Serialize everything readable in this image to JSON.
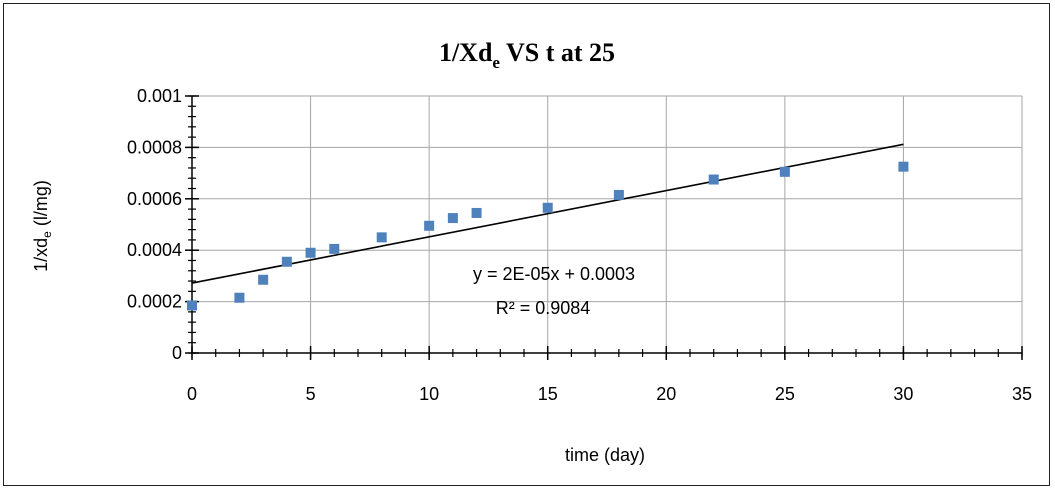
{
  "chart_data": {
    "type": "scatter",
    "title_main": "1/Xd",
    "title_sub": "e",
    "title_rest": " VS t at 25",
    "xlabel": "time (day)",
    "ylabel_main": "1/xd",
    "ylabel_sub": "e",
    "ylabel_rest": " (l/mg)",
    "xlim": [
      0,
      35
    ],
    "ylim": [
      0,
      0.001
    ],
    "x_ticks": [
      0,
      5,
      10,
      15,
      20,
      25,
      30,
      35
    ],
    "y_ticks": [
      0,
      0.0002,
      0.0004,
      0.0006,
      0.0008,
      0.001
    ],
    "y_tick_labels": [
      "0",
      "0.0002",
      "0.0004",
      "0.0006",
      "0.0008",
      "0.001"
    ],
    "grid": true,
    "marker_color": "#4f81bd",
    "series": [
      {
        "x": [
          0,
          2,
          3,
          4,
          5,
          6,
          8,
          10,
          11,
          12,
          15,
          18,
          22,
          25,
          30
        ],
        "y": [
          0.000185,
          0.000215,
          0.000285,
          0.000355,
          0.00039,
          0.000405,
          0.00045,
          0.000495,
          0.000525,
          0.000545,
          0.000565,
          0.000615,
          0.000675,
          0.000705,
          0.000725
        ]
      }
    ],
    "trendline": {
      "x": [
        0,
        30
      ],
      "y": [
        0.000272,
        0.000812
      ],
      "color": "#000000"
    },
    "equation": "y = 2E-05x + 0.0003",
    "r_squared": "R² = 0.9084"
  }
}
